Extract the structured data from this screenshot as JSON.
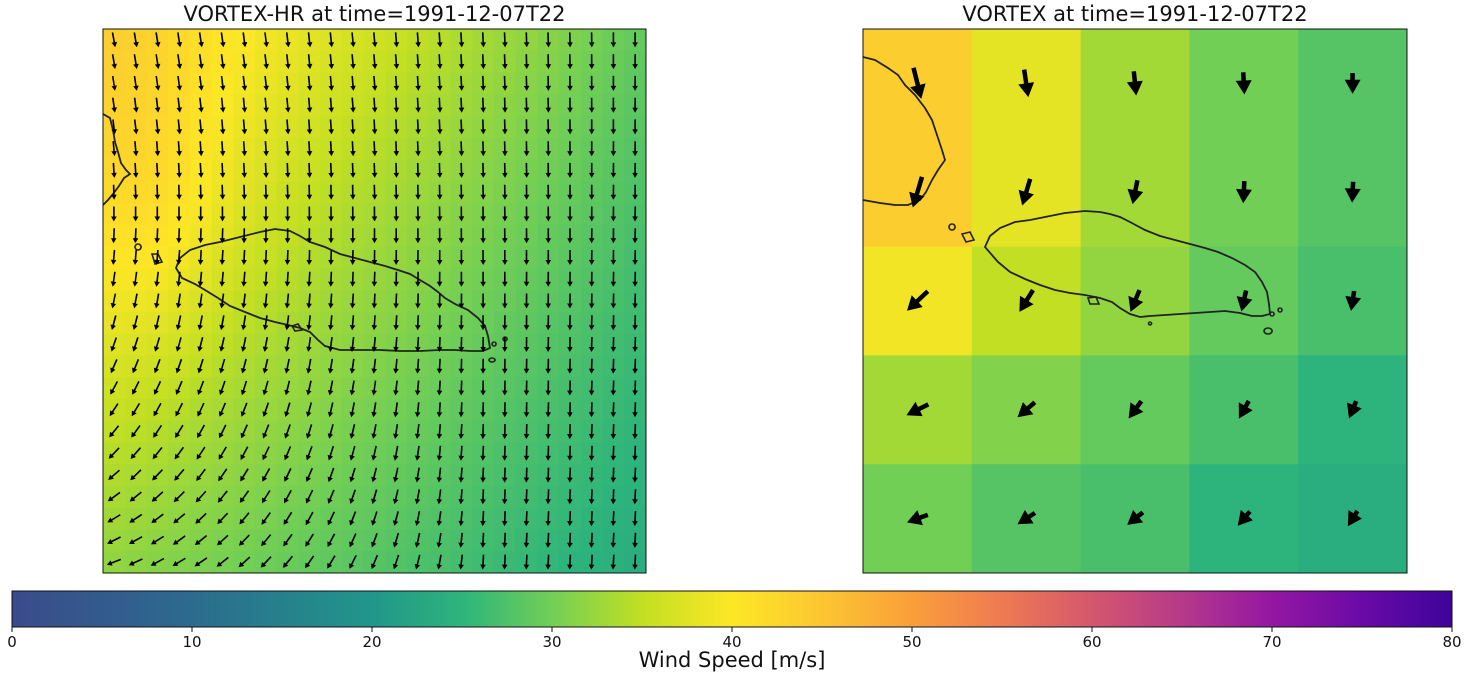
{
  "chart_data": [
    {
      "type": "heatmap",
      "subtype": "vector-field-map",
      "title": "VORTEX-HR at time=1991-12-07T22",
      "grid": {
        "rows": 25,
        "cols": 25
      },
      "wind_speed_range_m_s": [
        20,
        45
      ],
      "corner_wind_speed_m_s": {
        "top_left": 43,
        "top_right": 29,
        "bottom_left": 32,
        "bottom_right": 24
      },
      "max_wind_speed_m_s": 45,
      "features": [
        "coastline",
        "wind-vectors"
      ]
    },
    {
      "type": "heatmap",
      "subtype": "vector-field-map",
      "title": "VORTEX at time=1991-12-07T22",
      "grid": {
        "rows": 5,
        "cols": 5
      },
      "values": [
        [
          44,
          38,
          33,
          30,
          28
        ],
        [
          44,
          38,
          33,
          30,
          28
        ],
        [
          39,
          35,
          32,
          29,
          27
        ],
        [
          33,
          31,
          29,
          27,
          25
        ],
        [
          30,
          28,
          27,
          25,
          24
        ]
      ],
      "vectors": [
        [
          [
            0.25,
            1.0
          ],
          [
            0.15,
            1.0
          ],
          [
            0.1,
            1.0
          ],
          [
            0.05,
            1.0
          ],
          [
            0.0,
            1.0
          ]
        ],
        [
          [
            -0.3,
            1.0
          ],
          [
            -0.3,
            1.0
          ],
          [
            -0.2,
            1.0
          ],
          [
            -0.05,
            1.0
          ],
          [
            -0.05,
            1.0
          ]
        ],
        [
          [
            -0.8,
            0.75
          ],
          [
            -0.5,
            0.8
          ],
          [
            -0.35,
            0.85
          ],
          [
            -0.2,
            0.9
          ],
          [
            -0.15,
            0.95
          ]
        ],
        [
          [
            -0.9,
            0.45
          ],
          [
            -0.75,
            0.65
          ],
          [
            -0.55,
            0.75
          ],
          [
            -0.45,
            0.8
          ],
          [
            -0.35,
            0.85
          ]
        ],
        [
          [
            -0.95,
            0.35
          ],
          [
            -0.85,
            0.55
          ],
          [
            -0.75,
            0.6
          ],
          [
            -0.6,
            0.7
          ],
          [
            -0.5,
            0.8
          ]
        ]
      ],
      "features": [
        "coastline",
        "wind-vectors"
      ]
    }
  ],
  "colorbar": {
    "label": "Wind Speed [m/s]",
    "range": [
      0,
      80
    ],
    "ticks": [
      "0",
      "10",
      "20",
      "30",
      "40",
      "50",
      "60",
      "70",
      "80"
    ],
    "colormap": "viridis-plasma (diverging at 40)",
    "colors": [
      "#3b4a8c",
      "#27808e",
      "#21a884",
      "#8cd646",
      "#fde725",
      "#fca636",
      "#e16462",
      "#9c179e",
      "#3d049b"
    ]
  }
}
